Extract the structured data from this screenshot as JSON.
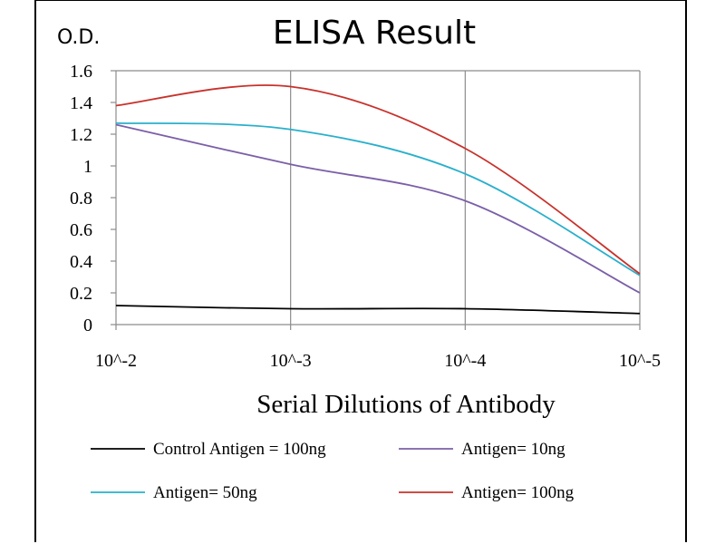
{
  "chart_data": {
    "type": "line",
    "title": "ELISA Result",
    "ylabel": "O.D.",
    "xlabel": "Serial Dilutions  of Antibody",
    "categories": [
      "10^-2",
      "10^-3",
      "10^-4",
      "10^-5"
    ],
    "yticks": [
      "0",
      "0.2",
      "0.4",
      "0.6",
      "0.8",
      "1",
      "1.2",
      "1.4",
      "1.6"
    ],
    "ylim": [
      0,
      1.6
    ],
    "grid": "vertical",
    "legend_position": "bottom",
    "series": [
      {
        "name": "Control Antigen = 100ng",
        "color": "#000000",
        "values": [
          0.12,
          0.1,
          0.1,
          0.07
        ]
      },
      {
        "name": "Antigen= 10ng",
        "color": "#7b5fa8",
        "values": [
          1.26,
          1.01,
          0.78,
          0.2
        ]
      },
      {
        "name": "Antigen= 50ng",
        "color": "#29b0cc",
        "values": [
          1.27,
          1.23,
          0.95,
          0.31
        ]
      },
      {
        "name": "Antigen= 100ng",
        "color": "#c8322c",
        "values": [
          1.38,
          1.5,
          1.11,
          0.32
        ]
      }
    ]
  }
}
